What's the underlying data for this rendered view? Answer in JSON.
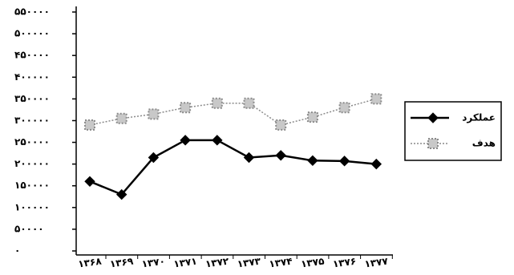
{
  "chart_data": {
    "type": "line",
    "categories": [
      "۱۳۶۸",
      "۱۳۶۹",
      "۱۳۷۰",
      "۱۳۷۱",
      "۱۳۷۲",
      "۱۳۷۳",
      "۱۳۷۴",
      "۱۳۷۵",
      "۱۳۷۶",
      "۱۳۷۷"
    ],
    "series": [
      {
        "name": "عملکرد",
        "color": "#000000",
        "marker": "diamond",
        "dash": false,
        "values": [
          160000,
          130000,
          215000,
          255000,
          255000,
          215000,
          220000,
          208000,
          207000,
          200000
        ]
      },
      {
        "name": "هدف",
        "color": "#8a8a8a",
        "marker": "square",
        "dash": true,
        "values": [
          290000,
          305000,
          315000,
          330000,
          340000,
          340000,
          290000,
          308000,
          330000,
          350000
        ]
      }
    ],
    "ylim": [
      0,
      550000
    ],
    "yticks": [
      {
        "value": 0,
        "label": "۰"
      },
      {
        "value": 50000,
        "label": "۵۰۰۰۰"
      },
      {
        "value": 100000,
        "label": "۱۰۰۰۰۰"
      },
      {
        "value": 150000,
        "label": "۱۵۰۰۰۰"
      },
      {
        "value": 200000,
        "label": "۲۰۰۰۰۰"
      },
      {
        "value": 250000,
        "label": "۲۵۰۰۰۰"
      },
      {
        "value": 300000,
        "label": "۳۰۰۰۰۰"
      },
      {
        "value": 350000,
        "label": "۳۵۰۰۰۰"
      },
      {
        "value": 400000,
        "label": "۴۰۰۰۰۰"
      },
      {
        "value": 450000,
        "label": "۴۵۰۰۰۰"
      },
      {
        "value": 500000,
        "label": "۵۰۰۰۰۰"
      },
      {
        "value": 550000,
        "label": "۵۵۰۰۰۰"
      }
    ],
    "legend": "right"
  }
}
